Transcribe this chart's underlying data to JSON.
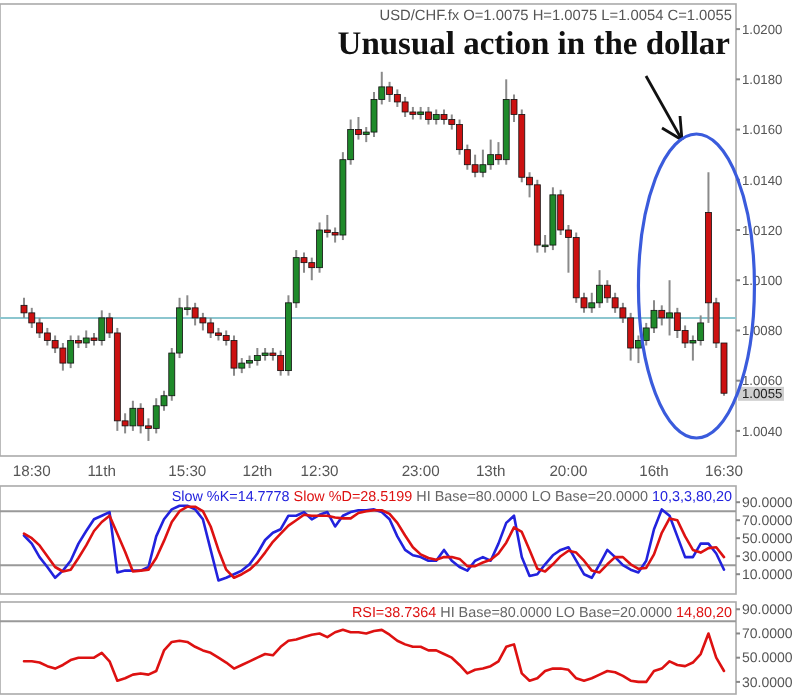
{
  "chart_data": [
    {
      "type": "candlestick",
      "title": "USD/CHF.fx O=1.0075 H=1.0075 L=1.0054 C=1.0055",
      "annotations": [
        "Unusual action in the dollar"
      ],
      "categories": [
        null,
        "18:30",
        null,
        null,
        null,
        null,
        null,
        null,
        null,
        null,
        "11th",
        null,
        null,
        null,
        null,
        null,
        null,
        null,
        null,
        null,
        null,
        "15:30",
        null,
        null,
        null,
        null,
        null,
        null,
        null,
        null,
        "12th",
        null,
        null,
        null,
        null,
        null,
        null,
        null,
        "12:30",
        null,
        null,
        null,
        null,
        null,
        null,
        null,
        null,
        null,
        null,
        null,
        null,
        "23:00",
        null,
        null,
        null,
        null,
        null,
        null,
        null,
        null,
        "13th",
        null,
        null,
        null,
        null,
        null,
        null,
        null,
        null,
        null,
        "20:00",
        null,
        null,
        null,
        null,
        null,
        null,
        null,
        null,
        null,
        null,
        "16th",
        null,
        null,
        null,
        null,
        null,
        null,
        null,
        null,
        "16:30"
      ],
      "ohlc": [
        [
          1.009,
          1.0093,
          1.0085,
          1.0087
        ],
        [
          1.0087,
          1.0089,
          1.0081,
          1.0083
        ],
        [
          1.0083,
          1.0085,
          1.0077,
          1.0079
        ],
        [
          1.0079,
          1.0081,
          1.0074,
          1.0076
        ],
        [
          1.0076,
          1.0078,
          1.0071,
          1.0073
        ],
        [
          1.0073,
          1.0075,
          1.0064,
          1.0067
        ],
        [
          1.0067,
          1.0078,
          1.0065,
          1.0076
        ],
        [
          1.0076,
          1.0078,
          1.0073,
          1.0075
        ],
        [
          1.0075,
          1.008,
          1.0073,
          1.0077
        ],
        [
          1.0077,
          1.0079,
          1.0074,
          1.0076
        ],
        [
          1.0076,
          1.0088,
          1.0074,
          1.0085
        ],
        [
          1.0085,
          1.0087,
          1.0077,
          1.0079
        ],
        [
          1.0079,
          1.0081,
          1.004,
          1.0044
        ],
        [
          1.0044,
          1.0047,
          1.0039,
          1.0042
        ],
        [
          1.0042,
          1.0052,
          1.004,
          1.0049
        ],
        [
          1.0049,
          1.0051,
          1.0039,
          1.0042
        ],
        [
          1.0042,
          1.0045,
          1.0036,
          1.0041
        ],
        [
          1.0041,
          1.0053,
          1.0039,
          1.005
        ],
        [
          1.005,
          1.0056,
          1.0048,
          1.0054
        ],
        [
          1.0054,
          1.0073,
          1.0052,
          1.0071
        ],
        [
          1.0071,
          1.0093,
          1.0069,
          1.0089
        ],
        [
          1.0089,
          1.0094,
          1.0086,
          1.0089
        ],
        [
          1.0089,
          1.0091,
          1.0082,
          1.0085
        ],
        [
          1.0085,
          1.0087,
          1.008,
          1.0083
        ],
        [
          1.0083,
          1.0085,
          1.0077,
          1.0079
        ],
        [
          1.0079,
          1.0081,
          1.0076,
          1.0078
        ],
        [
          1.0078,
          1.008,
          1.0074,
          1.0076
        ],
        [
          1.0076,
          1.0078,
          1.0062,
          1.0065
        ],
        [
          1.0065,
          1.0069,
          1.0063,
          1.0067
        ],
        [
          1.0067,
          1.007,
          1.0065,
          1.0068
        ],
        [
          1.0068,
          1.0073,
          1.0066,
          1.007
        ],
        [
          1.007,
          1.0073,
          1.0068,
          1.0071
        ],
        [
          1.0071,
          1.0073,
          1.0068,
          1.007
        ],
        [
          1.007,
          1.0072,
          1.0062,
          1.0064
        ],
        [
          1.0064,
          1.0094,
          1.0062,
          1.0091
        ],
        [
          1.0091,
          1.0112,
          1.0089,
          1.0109
        ],
        [
          1.0109,
          1.0111,
          1.0103,
          1.0107
        ],
        [
          1.0107,
          1.0109,
          1.01,
          1.0105
        ],
        [
          1.0105,
          1.0123,
          1.0103,
          1.012
        ],
        [
          1.012,
          1.0126,
          1.0117,
          1.0119
        ],
        [
          1.0119,
          1.0121,
          1.0115,
          1.0118
        ],
        [
          1.0118,
          1.0151,
          1.0116,
          1.0148
        ],
        [
          1.0148,
          1.0164,
          1.0146,
          1.016
        ],
        [
          1.016,
          1.0165,
          1.0156,
          1.0158
        ],
        [
          1.0158,
          1.0161,
          1.0155,
          1.0159
        ],
        [
          1.0159,
          1.0175,
          1.0157,
          1.0172
        ],
        [
          1.0172,
          1.0183,
          1.017,
          1.0177
        ],
        [
          1.0177,
          1.0179,
          1.0171,
          1.0174
        ],
        [
          1.0174,
          1.0176,
          1.0169,
          1.0171
        ],
        [
          1.0171,
          1.0173,
          1.0165,
          1.0167
        ],
        [
          1.0167,
          1.0169,
          1.0164,
          1.0166
        ],
        [
          1.0166,
          1.0169,
          1.0164,
          1.0167
        ],
        [
          1.0167,
          1.0169,
          1.0162,
          1.0164
        ],
        [
          1.0164,
          1.0168,
          1.0162,
          1.0166
        ],
        [
          1.0166,
          1.0168,
          1.0162,
          1.0164
        ],
        [
          1.0164,
          1.0166,
          1.016,
          1.0162
        ],
        [
          1.0162,
          1.0164,
          1.015,
          1.0152
        ],
        [
          1.0152,
          1.0154,
          1.0144,
          1.0146
        ],
        [
          1.0146,
          1.015,
          1.0141,
          1.0143
        ],
        [
          1.0143,
          1.0152,
          1.0141,
          1.0146
        ],
        [
          1.0146,
          1.0156,
          1.0144,
          1.015
        ],
        [
          1.015,
          1.0155,
          1.0146,
          1.0148
        ],
        [
          1.0148,
          1.018,
          1.0146,
          1.0172
        ],
        [
          1.0172,
          1.0174,
          1.0163,
          1.0166
        ],
        [
          1.0166,
          1.0168,
          1.0139,
          1.0141
        ],
        [
          1.0141,
          1.0143,
          1.0133,
          1.0138
        ],
        [
          1.0138,
          1.014,
          1.0111,
          1.0114
        ],
        [
          1.0114,
          1.0118,
          1.0111,
          1.0114
        ],
        [
          1.0114,
          1.0137,
          1.0112,
          1.0134
        ],
        [
          1.0134,
          1.0136,
          1.0118,
          1.012
        ],
        [
          1.012,
          1.0122,
          1.0103,
          1.0117
        ],
        [
          1.0117,
          1.0119,
          1.0091,
          1.0093
        ],
        [
          1.0093,
          1.0095,
          1.0087,
          1.0089
        ],
        [
          1.0089,
          1.0095,
          1.0087,
          1.0091
        ],
        [
          1.0091,
          1.0104,
          1.0089,
          1.0098
        ],
        [
          1.0098,
          1.01,
          1.0091,
          1.0093
        ],
        [
          1.0093,
          1.0095,
          1.0087,
          1.0089
        ],
        [
          1.0089,
          1.0091,
          1.0083,
          1.0085
        ],
        [
          1.0085,
          1.0087,
          1.0068,
          1.0073
        ],
        [
          1.0073,
          1.0078,
          1.0067,
          1.0076
        ],
        [
          1.0076,
          1.0083,
          1.0074,
          1.0081
        ],
        [
          1.0081,
          1.0092,
          1.0079,
          1.0088
        ],
        [
          1.0088,
          1.009,
          1.0082,
          1.0085
        ],
        [
          1.0085,
          1.01,
          1.0078,
          1.0087
        ],
        [
          1.0087,
          1.0089,
          1.0077,
          1.008
        ],
        [
          1.008,
          1.0082,
          1.0073,
          1.0075
        ],
        [
          1.0075,
          1.0078,
          1.0068,
          1.0076
        ],
        [
          1.0076,
          1.0086,
          1.0074,
          1.0083
        ],
        [
          1.0127,
          1.0143,
          1.0083,
          1.0091
        ],
        [
          1.0091,
          1.0093,
          1.0073,
          1.0075
        ],
        [
          1.0075,
          1.0075,
          1.0054,
          1.0055
        ]
      ],
      "ylim": [
        1.003,
        1.021
      ],
      "yticks": [
        {
          "value": 1.004,
          "label": "1.0040"
        },
        {
          "value": 1.006,
          "label": "1.0060"
        },
        {
          "value": 1.008,
          "label": "1.0080"
        },
        {
          "value": 1.01,
          "label": "1.0100"
        },
        {
          "value": 1.012,
          "label": "1.0120"
        },
        {
          "value": 1.014,
          "label": "1.0140"
        },
        {
          "value": 1.016,
          "label": "1.0160"
        },
        {
          "value": 1.018,
          "label": "1.0180"
        },
        {
          "value": 1.02,
          "label": "1.0200"
        },
        {
          "value": 1.0055,
          "label": "1.0055"
        }
      ],
      "ref_lines": [
        {
          "axis": "y",
          "value": 1.0085,
          "color": "#8cc6cf"
        }
      ]
    },
    {
      "type": "line",
      "title": "HI Base=80.0000 LO Base=20.0000",
      "annotations": [
        "10,3,3,80,20"
      ],
      "legend": "top",
      "tick_labels": "y",
      "categories": [
        null,
        null,
        null,
        null,
        null,
        null,
        null,
        null,
        null,
        null,
        null,
        null,
        null,
        null,
        null,
        null,
        null,
        null,
        null,
        null,
        null,
        null,
        null,
        null,
        null,
        null,
        null,
        null,
        null,
        null,
        null,
        null,
        null,
        null,
        null,
        null,
        null,
        null,
        null,
        null,
        null,
        null,
        null,
        null,
        null,
        null,
        null,
        null,
        null,
        null,
        null,
        null,
        null,
        null,
        null,
        null,
        null,
        null,
        null,
        null,
        null,
        null,
        null,
        null,
        null,
        null,
        null,
        null,
        null,
        null,
        null,
        null,
        null,
        null,
        null,
        null,
        null,
        null,
        null,
        null,
        null,
        null,
        null,
        null,
        null,
        null,
        null,
        null,
        null,
        null,
        null
      ],
      "series": [
        {
          "name": "Slow %K=14.7778",
          "color": "#2222dd",
          "values": [
            53,
            44,
            29,
            18,
            6,
            14,
            25,
            44,
            58,
            71,
            75,
            79,
            12,
            14,
            14,
            14,
            18,
            52,
            71,
            82,
            86,
            86,
            82,
            71,
            37,
            3,
            6,
            10,
            14,
            21,
            33,
            48,
            56,
            60,
            75,
            75,
            79,
            71,
            76,
            79,
            63,
            75,
            79,
            81,
            81,
            82,
            79,
            71,
            52,
            37,
            31,
            29,
            25,
            25,
            37,
            25,
            18,
            14,
            25,
            29,
            25,
            44,
            67,
            75,
            29,
            8,
            10,
            21,
            31,
            37,
            40,
            25,
            10,
            6,
            21,
            37,
            29,
            20,
            15,
            12,
            25,
            60,
            82,
            75,
            52,
            29,
            29,
            44,
            44,
            33,
            15
          ]
        },
        {
          "name": "Slow %D=28.5199",
          "color": "#dd1111",
          "values": [
            55,
            50,
            42,
            30,
            18,
            13,
            15,
            28,
            42,
            58,
            68,
            75,
            55,
            35,
            13,
            14,
            15,
            28,
            47,
            68,
            80,
            85,
            85,
            80,
            63,
            37,
            15,
            6,
            10,
            15,
            23,
            34,
            46,
            55,
            64,
            70,
            76,
            75,
            75,
            75,
            73,
            72,
            72,
            78,
            80,
            81,
            81,
            77,
            67,
            53,
            40,
            32,
            28,
            26,
            29,
            29,
            27,
            19,
            19,
            23,
            26,
            33,
            45,
            62,
            57,
            37,
            16,
            13,
            21,
            30,
            36,
            34,
            25,
            14,
            12,
            21,
            29,
            29,
            21,
            16,
            17,
            32,
            56,
            72,
            70,
            52,
            37,
            34,
            39,
            40,
            29
          ]
        }
      ],
      "ylim": [
        -12,
        108
      ],
      "yticks": [
        {
          "value": 10,
          "label": "10.0000"
        },
        {
          "value": 30,
          "label": "30.0000"
        },
        {
          "value": 50,
          "label": "50.0000"
        },
        {
          "value": 70,
          "label": "70.0000"
        },
        {
          "value": 90,
          "label": "90.0000"
        }
      ],
      "ref_lines": [
        {
          "axis": "y",
          "value": 80,
          "color": "#999999"
        },
        {
          "axis": "y",
          "value": 20,
          "color": "#999999"
        }
      ]
    },
    {
      "type": "line",
      "title": "HI Base=80.0000 LO Base=20.0000",
      "annotations": [
        "14,80,20"
      ],
      "legend": "top right",
      "tick_labels": "y",
      "categories": [
        null,
        null,
        null,
        null,
        null,
        null,
        null,
        null,
        null,
        null,
        null,
        null,
        null,
        null,
        null,
        null,
        null,
        null,
        null,
        null,
        null,
        null,
        null,
        null,
        null,
        null,
        null,
        null,
        null,
        null,
        null,
        null,
        null,
        null,
        null,
        null,
        null,
        null,
        null,
        null,
        null,
        null,
        null,
        null,
        null,
        null,
        null,
        null,
        null,
        null,
        null,
        null,
        null,
        null,
        null,
        null,
        null,
        null,
        null,
        null,
        null,
        null,
        null,
        null,
        null,
        null,
        null,
        null,
        null,
        null,
        null,
        null,
        null,
        null,
        null,
        null,
        null,
        null,
        null,
        null,
        null,
        null,
        null,
        null,
        null,
        null,
        null,
        null,
        null,
        null,
        null
      ],
      "series": [
        {
          "name": "RSI=38.7364",
          "color": "#dd1111",
          "values": [
            47,
            47,
            46,
            43,
            41,
            44,
            48,
            50,
            50,
            50,
            54,
            47,
            31,
            33,
            36,
            37,
            36,
            39,
            56,
            63,
            64,
            63,
            59,
            56,
            54,
            50,
            46,
            41,
            44,
            47,
            50,
            53,
            52,
            59,
            64,
            65,
            67,
            69,
            70,
            67,
            71,
            73,
            71,
            71,
            70,
            72,
            73,
            69,
            64,
            61,
            59,
            59,
            56,
            56,
            53,
            50,
            44,
            37,
            40,
            41,
            43,
            47,
            59,
            61,
            37,
            31,
            33,
            39,
            41,
            41,
            40,
            33,
            31,
            33,
            36,
            39,
            38,
            35,
            31,
            30,
            30,
            39,
            41,
            47,
            44,
            43,
            46,
            53,
            70,
            50,
            39
          ]
        }
      ],
      "ylim": [
        20,
        96
      ],
      "yticks": [
        {
          "value": 30,
          "label": "30.0000"
        },
        {
          "value": 50,
          "label": "50.0000"
        },
        {
          "value": 70,
          "label": "70.0000"
        },
        {
          "value": 90,
          "label": "90.0000"
        }
      ],
      "ref_lines": [
        {
          "axis": "y",
          "value": 80,
          "color": "#999999"
        }
      ]
    }
  ]
}
